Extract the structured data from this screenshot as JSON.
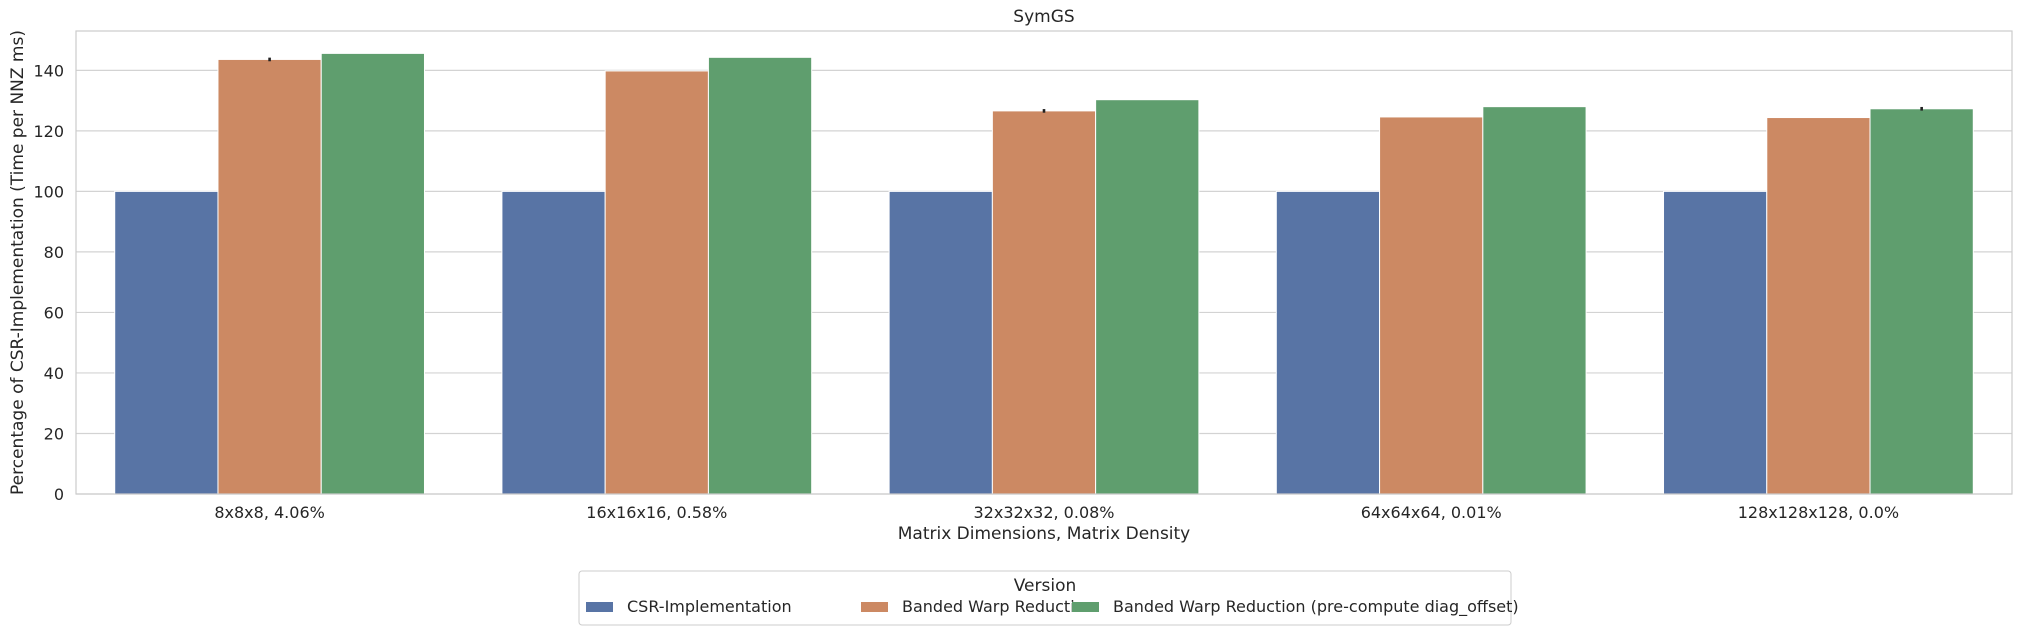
{
  "chart_data": {
    "type": "bar",
    "title": "SymGS",
    "xlabel": "Matrix Dimensions, Matrix Density",
    "ylabel": "Percentage of CSR-Implementation (Time per NNZ ms)",
    "categories": [
      "8x8x8, 4.06%",
      "16x16x16, 0.58%",
      "32x32x32, 0.08%",
      "64x64x64, 0.01%",
      "128x128x128, 0.0%"
    ],
    "ylim": [
      0,
      153
    ],
    "yticks": [
      0,
      20,
      40,
      60,
      80,
      100,
      120,
      140
    ],
    "grid": true,
    "legend": {
      "title": "Version",
      "placement": "bottom-center"
    },
    "series": [
      {
        "name": "CSR-Implementation",
        "color": "#5874a5",
        "values": [
          100,
          100,
          100,
          100,
          100
        ],
        "errors": [
          0,
          0,
          0,
          0,
          0
        ]
      },
      {
        "name": "Banded Warp Reduction",
        "color": "#cc8963",
        "values": [
          143.6,
          139.8,
          126.6,
          124.6,
          124.4
        ],
        "errors": [
          0.6,
          0,
          0.6,
          0,
          0
        ]
      },
      {
        "name": "Banded Warp Reduction (pre-compute diag_offset)",
        "color": "#5f9e6e",
        "values": [
          145.6,
          144.3,
          130.3,
          128.0,
          127.3
        ],
        "errors": [
          0,
          0,
          0,
          0,
          0.6
        ]
      }
    ]
  }
}
